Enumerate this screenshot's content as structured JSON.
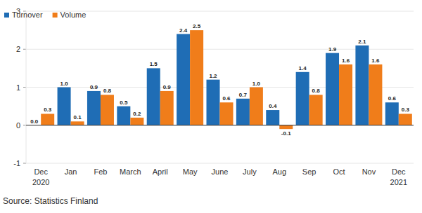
{
  "chart_data": {
    "type": "bar",
    "categories": [
      "Dec 2020",
      "Jan",
      "Feb",
      "March",
      "April",
      "May",
      "June",
      "July",
      "Aug",
      "Sep",
      "Oct",
      "Nov",
      "Dec 2021"
    ],
    "series": [
      {
        "name": "Turnover",
        "color": "#1f6db5",
        "values": [
          0.0,
          1.0,
          0.9,
          0.5,
          1.5,
          2.4,
          1.2,
          0.7,
          0.4,
          1.4,
          1.9,
          2.1,
          0.6
        ],
        "value_labels": [
          "0.0",
          "1.0",
          "0.9",
          "0.5",
          "1.5",
          "2.4",
          "1.2",
          "0.7",
          "0.4",
          "1.4",
          "1.9",
          "2.1",
          "0.6"
        ]
      },
      {
        "name": "Volume",
        "color": "#f07d1a",
        "values": [
          0.3,
          0.1,
          0.8,
          0.2,
          0.9,
          2.5,
          0.6,
          1.0,
          -0.1,
          0.8,
          1.6,
          1.6,
          0.3
        ],
        "value_labels": [
          "0.3",
          "0.1",
          "0.8",
          "0.2",
          "0.9",
          "2.5",
          "0.6",
          "1.0",
          "-0.1",
          "0.8",
          "1.6",
          "1.6",
          "0.3"
        ]
      }
    ],
    "ylim": [
      -1,
      3
    ],
    "yticks": [
      -1,
      0,
      1,
      2,
      3
    ],
    "grid": true,
    "legend": "top-left",
    "data_labels": true,
    "source": "Source: Statistics Finland"
  }
}
